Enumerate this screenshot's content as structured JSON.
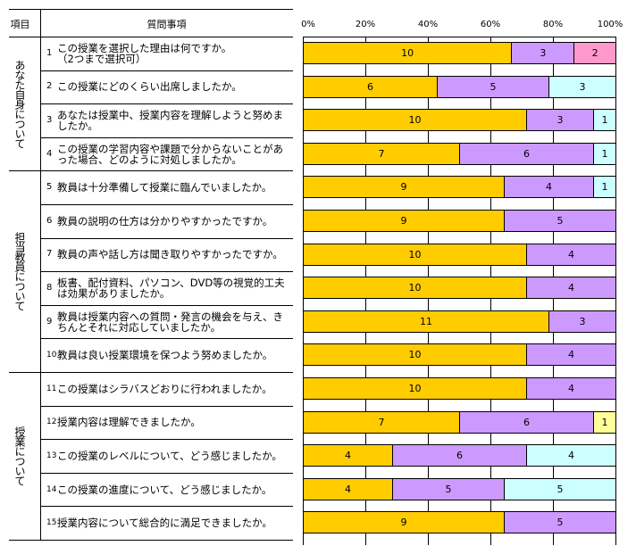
{
  "table": {
    "header_category": "項目",
    "header_question": "質問事項",
    "sections": [
      {
        "label": "あなた自身について",
        "rows": 4
      },
      {
        "label": "担当教員について",
        "rows": 6
      },
      {
        "label": "授業について",
        "rows": 5
      }
    ],
    "questions": [
      {
        "no": "1",
        "text": "この授業を選択した理由は何ですか。\n（2つまで選択可）"
      },
      {
        "no": "2",
        "text": "この授業にどのくらい出席しましたか。"
      },
      {
        "no": "3",
        "text": "あなたは授業中、授業内容を理解しようと努めましたか。"
      },
      {
        "no": "4",
        "text": "この授業の学習内容や課題で分からないことがあった場合、どのように対処しましたか。"
      },
      {
        "no": "5",
        "text": "教員は十分準備して授業に臨んでいましたか。"
      },
      {
        "no": "6",
        "text": "教員の説明の仕方は分かりやすかったですか。"
      },
      {
        "no": "7",
        "text": "教員の声や話し方は聞き取りやすかったですか。"
      },
      {
        "no": "8",
        "text": "板書、配付資料、パソコン、DVD等の視覚的工夫は効果がありましたか。"
      },
      {
        "no": "9",
        "text": "教員は授業内容への質問・発言の機会を与え、きちんとそれに対応していましたか。"
      },
      {
        "no": "10",
        "text": "教員は良い授業環境を保つよう努めましたか。"
      },
      {
        "no": "11",
        "text": "この授業はシラバスどおりに行われましたか。"
      },
      {
        "no": "12",
        "text": "授業内容は理解できましたか。"
      },
      {
        "no": "13",
        "text": "この授業のレベルについて、どう感じましたか。"
      },
      {
        "no": "14",
        "text": "この授業の進度について、どう感じましたか。"
      },
      {
        "no": "15",
        "text": "授業内容について総合的に満足できましたか。"
      }
    ]
  },
  "chart_data": {
    "type": "bar",
    "orientation": "horizontal",
    "stacked": "percent",
    "xlim": [
      0,
      100
    ],
    "x_ticks": [
      "0%",
      "20%",
      "40%",
      "60%",
      "80%",
      "100%"
    ],
    "grid": true,
    "colors": {
      "orange": "#FFCC00",
      "lavender": "#CC99FF",
      "cyan": "#CCFFFF",
      "pink": "#FF99CC",
      "yellow": "#FFFF99"
    },
    "rows": [
      [
        {
          "v": 10,
          "c": "orange"
        },
        {
          "v": 3,
          "c": "lavender"
        },
        {
          "v": 2,
          "c": "pink"
        }
      ],
      [
        {
          "v": 6,
          "c": "orange"
        },
        {
          "v": 5,
          "c": "lavender"
        },
        {
          "v": 3,
          "c": "cyan"
        }
      ],
      [
        {
          "v": 10,
          "c": "orange"
        },
        {
          "v": 3,
          "c": "lavender"
        },
        {
          "v": 1,
          "c": "cyan"
        }
      ],
      [
        {
          "v": 7,
          "c": "orange"
        },
        {
          "v": 6,
          "c": "lavender"
        },
        {
          "v": 1,
          "c": "cyan"
        }
      ],
      [
        {
          "v": 9,
          "c": "orange"
        },
        {
          "v": 4,
          "c": "lavender"
        },
        {
          "v": 1,
          "c": "cyan"
        }
      ],
      [
        {
          "v": 9,
          "c": "orange"
        },
        {
          "v": 5,
          "c": "lavender"
        }
      ],
      [
        {
          "v": 10,
          "c": "orange"
        },
        {
          "v": 4,
          "c": "lavender"
        }
      ],
      [
        {
          "v": 10,
          "c": "orange"
        },
        {
          "v": 4,
          "c": "lavender"
        }
      ],
      [
        {
          "v": 11,
          "c": "orange"
        },
        {
          "v": 3,
          "c": "lavender"
        }
      ],
      [
        {
          "v": 10,
          "c": "orange"
        },
        {
          "v": 4,
          "c": "lavender"
        }
      ],
      [
        {
          "v": 10,
          "c": "orange"
        },
        {
          "v": 4,
          "c": "lavender"
        }
      ],
      [
        {
          "v": 7,
          "c": "orange"
        },
        {
          "v": 6,
          "c": "lavender"
        },
        {
          "v": 1,
          "c": "yellow"
        }
      ],
      [
        {
          "v": 4,
          "c": "orange"
        },
        {
          "v": 6,
          "c": "lavender"
        },
        {
          "v": 4,
          "c": "cyan"
        }
      ],
      [
        {
          "v": 4,
          "c": "orange"
        },
        {
          "v": 5,
          "c": "lavender"
        },
        {
          "v": 5,
          "c": "cyan"
        }
      ],
      [
        {
          "v": 9,
          "c": "orange"
        },
        {
          "v": 5,
          "c": "lavender"
        }
      ]
    ]
  }
}
